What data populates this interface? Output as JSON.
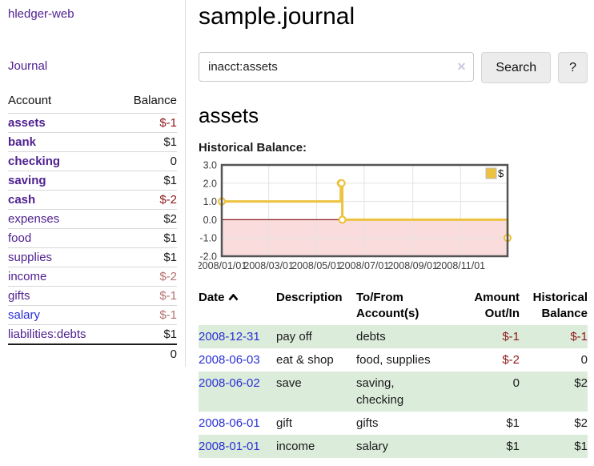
{
  "sidebar": {
    "brand": "hledger-web",
    "nav": {
      "journal": "Journal"
    },
    "accounts_table": {
      "headers": {
        "account": "Account",
        "balance": "Balance"
      },
      "rows": [
        {
          "name": "assets",
          "depth": 1,
          "bold": true,
          "link_color": "purple",
          "balance": "$-1",
          "balance_style": "negative-strong"
        },
        {
          "name": "bank",
          "depth": 2,
          "bold": true,
          "link_color": "purple",
          "balance": "$1",
          "balance_style": "normal"
        },
        {
          "name": "checking",
          "depth": 3,
          "bold": true,
          "link_color": "purple",
          "balance": "0",
          "balance_style": "normal"
        },
        {
          "name": "saving",
          "depth": 3,
          "bold": true,
          "link_color": "purple",
          "balance": "$1",
          "balance_style": "normal"
        },
        {
          "name": "cash",
          "depth": 2,
          "bold": true,
          "link_color": "purple",
          "balance": "$-2",
          "balance_style": "negative-strong"
        },
        {
          "name": "expenses",
          "depth": 1,
          "bold": false,
          "link_color": "purple",
          "balance": "$2",
          "balance_style": "normal"
        },
        {
          "name": "food",
          "depth": 2,
          "bold": false,
          "link_color": "purple",
          "balance": "$1",
          "balance_style": "normal"
        },
        {
          "name": "supplies",
          "depth": 2,
          "bold": false,
          "link_color": "purple",
          "balance": "$1",
          "balance_style": "normal"
        },
        {
          "name": "income",
          "depth": 1,
          "bold": false,
          "link_color": "purple",
          "balance": "$-2",
          "balance_style": "negative-dim"
        },
        {
          "name": "gifts",
          "depth": 2,
          "bold": false,
          "link_color": "purple",
          "balance": "$-1",
          "balance_style": "negative-dim"
        },
        {
          "name": "salary",
          "depth": 2,
          "bold": false,
          "link_color": "blue",
          "balance": "$-1",
          "balance_style": "negative-dim"
        },
        {
          "name": "liabilities:debts",
          "depth": 1,
          "bold": false,
          "link_color": "purple",
          "balance": "$1",
          "balance_style": "normal"
        }
      ],
      "total": "0"
    }
  },
  "header": {
    "title": "sample.journal"
  },
  "search": {
    "query": "inacct:assets",
    "clear_icon": "✕",
    "button_label": "Search",
    "help_label": "?"
  },
  "register": {
    "heading": "assets",
    "chart_label": "Historical Balance:",
    "table": {
      "headers": {
        "date": "Date",
        "description": "Description",
        "accounts": "To/From Account(s)",
        "amount": "Amount Out/In",
        "balance": "Historical Balance"
      },
      "rows": [
        {
          "date": "2008-12-31",
          "description": "pay off",
          "accounts": "debts",
          "amount": "$-1",
          "amount_negative": true,
          "balance": "$-1",
          "balance_negative": true,
          "shaded": true
        },
        {
          "date": "2008-06-03",
          "description": "eat & shop",
          "accounts": "food, supplies",
          "amount": "$-2",
          "amount_negative": true,
          "balance": "0",
          "balance_negative": false,
          "shaded": false
        },
        {
          "date": "2008-06-02",
          "description": "save",
          "accounts": "saving, checking",
          "amount": "0",
          "amount_negative": false,
          "balance": "$2",
          "balance_negative": false,
          "shaded": true
        },
        {
          "date": "2008-06-01",
          "description": "gift",
          "accounts": "gifts",
          "amount": "$1",
          "amount_negative": false,
          "balance": "$2",
          "balance_negative": false,
          "shaded": false
        },
        {
          "date": "2008-01-01",
          "description": "income",
          "accounts": "salary",
          "amount": "$1",
          "amount_negative": false,
          "balance": "$1",
          "balance_negative": false,
          "shaded": true
        }
      ]
    }
  },
  "chart_data": {
    "type": "line",
    "title": "Historical Balance:",
    "series": [
      {
        "name": "$",
        "color": "#edc240",
        "points": [
          [
            "2008-01-01",
            1
          ],
          [
            "2008-06-01",
            2
          ],
          [
            "2008-06-02",
            2
          ],
          [
            "2008-06-03",
            0
          ],
          [
            "2008-12-31",
            -1
          ]
        ]
      }
    ],
    "x_ticks": [
      {
        "label": "2008/01/01",
        "date": "2008-01-01"
      },
      {
        "label": "2008/03/01",
        "date": "2008-03-01"
      },
      {
        "label": "2008/05/01",
        "date": "2008-05-01"
      },
      {
        "label": "2008/07/01",
        "date": "2008-07-01"
      },
      {
        "label": "2008/09/01",
        "date": "2008-09-01"
      },
      {
        "label": "2008/11/01",
        "date": "2008-11-01"
      }
    ],
    "y_ticks": [
      "3.0",
      "2.0",
      "1.0",
      "0.0",
      "-1.0",
      "-2.0"
    ],
    "ylim": [
      -2,
      3
    ],
    "legend_position": "top-right",
    "grid": true,
    "colors": {
      "border": "#545454",
      "gridline": "#e3e3e3",
      "negative_region": "#fadcdc",
      "zero_line": "#8b1a1a",
      "tick_text": "#3c3c3c"
    }
  },
  "colors": {
    "link_purple": "#4f2190",
    "link_blue": "#2a30d4",
    "negative_strong": "#8f1a1a",
    "negative_dim": "#b5716f",
    "row_stripe_green": "#dcecdb",
    "series_gold": "#edc240"
  }
}
